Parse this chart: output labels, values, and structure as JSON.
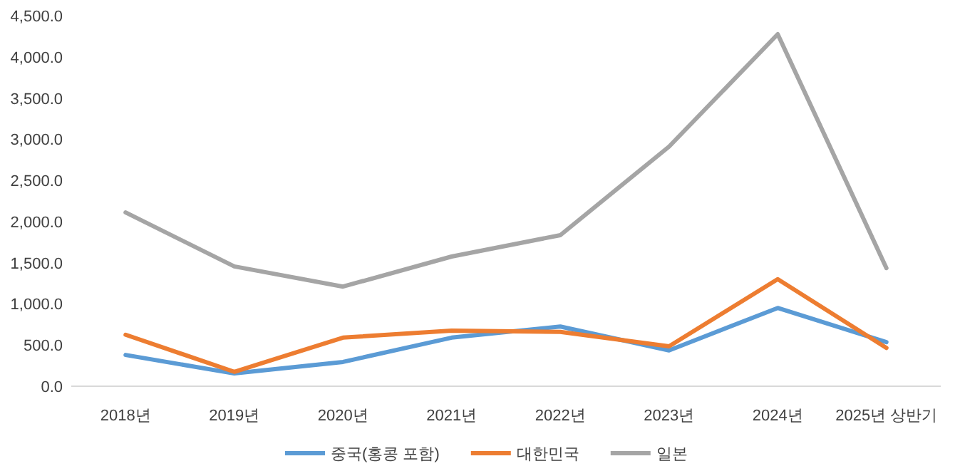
{
  "chart_data": {
    "type": "line",
    "categories": [
      "2018년",
      "2019년",
      "2020년",
      "2021년",
      "2022년",
      "2023년",
      "2024년",
      "2025년 상반기"
    ],
    "series": [
      {
        "name": "중국(홍콩 포함)",
        "color": "#5b9bd5",
        "values": [
          380,
          155,
          295,
          590,
          725,
          435,
          950,
          535
        ]
      },
      {
        "name": "대한민국",
        "color": "#ed7d31",
        "values": [
          625,
          175,
          590,
          675,
          660,
          485,
          1300,
          465
        ]
      },
      {
        "name": "일본",
        "color": "#a5a5a5",
        "values": [
          2110,
          1455,
          1210,
          1575,
          1835,
          2910,
          4275,
          1435
        ]
      }
    ],
    "ylim": [
      0,
      4500
    ],
    "yticks": [
      {
        "value": 0,
        "label": "0.0"
      },
      {
        "value": 500,
        "label": "500.0"
      },
      {
        "value": 1000,
        "label": "1,000.0"
      },
      {
        "value": 1500,
        "label": "1,500.0"
      },
      {
        "value": 2000,
        "label": "2,000.0"
      },
      {
        "value": 2500,
        "label": "2,500.0"
      },
      {
        "value": 3000,
        "label": "3,000.0"
      },
      {
        "value": 3500,
        "label": "3,500.0"
      },
      {
        "value": 4000,
        "label": "4,000.0"
      },
      {
        "value": 4500,
        "label": "4,500.0"
      }
    ],
    "grid": false,
    "legend": "bottom",
    "marker": "none",
    "line_style": "solid"
  }
}
